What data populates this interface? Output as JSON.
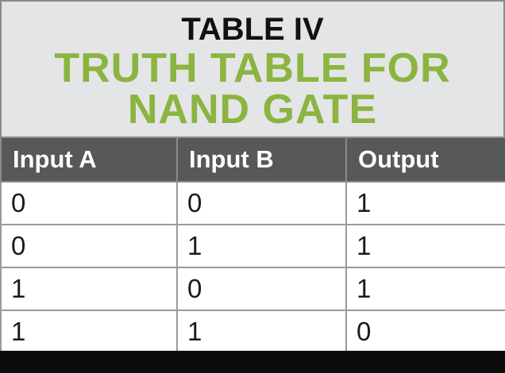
{
  "header": {
    "table_number": "TABLE IV",
    "title_lines": [
      "TRUTH TABLE FOR",
      "NAND GATE"
    ]
  },
  "table": {
    "columns": [
      "Input A",
      "Input B",
      "Output"
    ],
    "rows": [
      [
        "0",
        "0",
        "1"
      ],
      [
        "0",
        "1",
        "1"
      ],
      [
        "1",
        "0",
        "1"
      ],
      [
        "1",
        "1",
        "0"
      ]
    ]
  },
  "colors": {
    "header_background": "#e4e5e6",
    "title_green": "#8bb440",
    "column_header_background": "#575859",
    "bottom_bar": "#0c0c0c"
  }
}
